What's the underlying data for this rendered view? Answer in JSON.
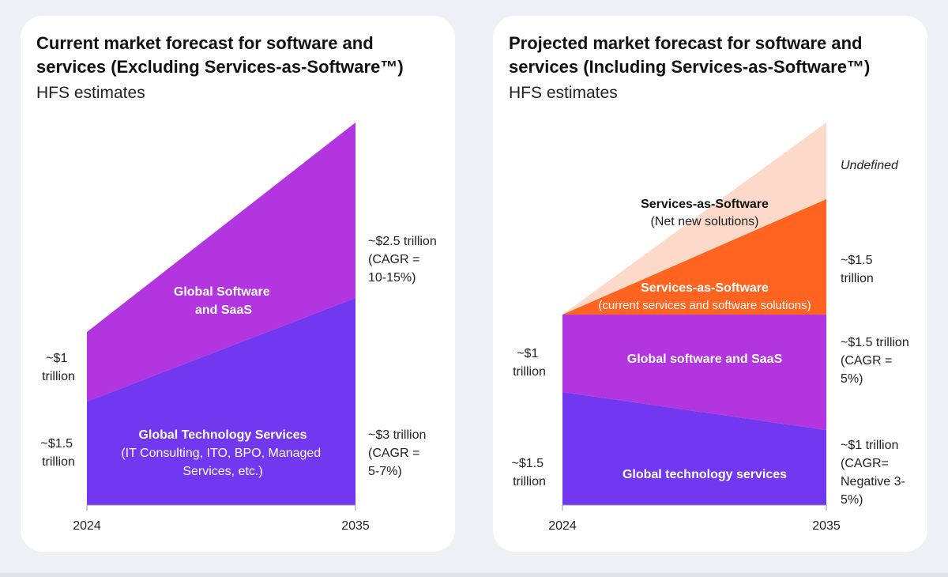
{
  "colors": {
    "purple": "#b235e0",
    "violet": "#7138ef",
    "orange": "#ff6421",
    "peach": "#fdd9c9",
    "background": "#eef0f5",
    "card": "#ffffff"
  },
  "left": {
    "title": "Current market forecast for software and services (Excluding Services-as-Software™)",
    "subtitle": "HFS estimates",
    "x_start": "2024",
    "x_end": "2035",
    "area_labels": {
      "software": [
        "Global Software",
        "and SaaS"
      ],
      "services_title": "Global Technology Services",
      "services_detail": [
        "(IT Consulting, ITO, BPO, Managed",
        "Services, etc.)"
      ]
    },
    "start_annotations": {
      "software": [
        "~$1",
        "trillion"
      ],
      "services": [
        "~$1.5",
        "trillion"
      ]
    },
    "end_annotations": {
      "software": [
        "~$2.5 trillion",
        "(CAGR =",
        "10-15%)"
      ],
      "services": [
        "~$3 trillion",
        "(CAGR =",
        "5-7%)"
      ]
    }
  },
  "right": {
    "title": "Projected market forecast for software and services (Including Services-as-Software™)",
    "subtitle": "HFS estimates",
    "x_start": "2024",
    "x_end": "2035",
    "area_labels": {
      "net_new_title": "Services-as-Software",
      "net_new_detail": "(Net new solutions)",
      "current_title": "Services-as-Software",
      "current_detail": "(current services and software solutions)",
      "software": "Global software and SaaS",
      "services": "Global technology services"
    },
    "start_annotations": {
      "software": [
        "~$1",
        "trillion"
      ],
      "services": [
        "~$1.5",
        "trillion"
      ]
    },
    "end_annotations": {
      "net_new": "Undefined",
      "current": [
        "~$1.5",
        "trillion"
      ],
      "software": [
        "~$1.5 trillion",
        "(CAGR =",
        "5%)"
      ],
      "services": [
        "~$1 trillion",
        "(CAGR=",
        "Negative 3-",
        "5%)"
      ]
    }
  },
  "chart_data": [
    {
      "type": "area",
      "stacked": true,
      "title": "Current market forecast for software and services (Excluding Services-as-Software™)",
      "subtitle": "HFS estimates",
      "x": [
        "2024",
        "2035"
      ],
      "unit": "trillion USD",
      "series": [
        {
          "name": "Global Technology Services",
          "values": [
            1.5,
            3
          ]
        },
        {
          "name": "Global Software and SaaS",
          "values": [
            1,
            2.5
          ]
        }
      ],
      "annotations": {
        "2035_cagr": {
          "Global Software and SaaS": "10-15%",
          "Global Technology Services": "5-7%"
        }
      }
    },
    {
      "type": "area",
      "stacked": true,
      "title": "Projected market forecast for software and services (Including Services-as-Software™)",
      "subtitle": "HFS estimates",
      "x": [
        "2024",
        "2035"
      ],
      "unit": "trillion USD",
      "series": [
        {
          "name": "Global technology services",
          "values": [
            1.5,
            1
          ]
        },
        {
          "name": "Global software and SaaS",
          "values": [
            1,
            1.5
          ]
        },
        {
          "name": "Services-as-Software (current services and software solutions)",
          "values": [
            0,
            1.5
          ]
        },
        {
          "name": "Services-as-Software (Net new solutions)",
          "values": [
            0,
            null
          ]
        }
      ],
      "annotations": {
        "2035_cagr": {
          "Global software and SaaS": "5%",
          "Global technology services": "Negative 3-5%"
        },
        "net_new_2035": "Undefined"
      }
    }
  ]
}
